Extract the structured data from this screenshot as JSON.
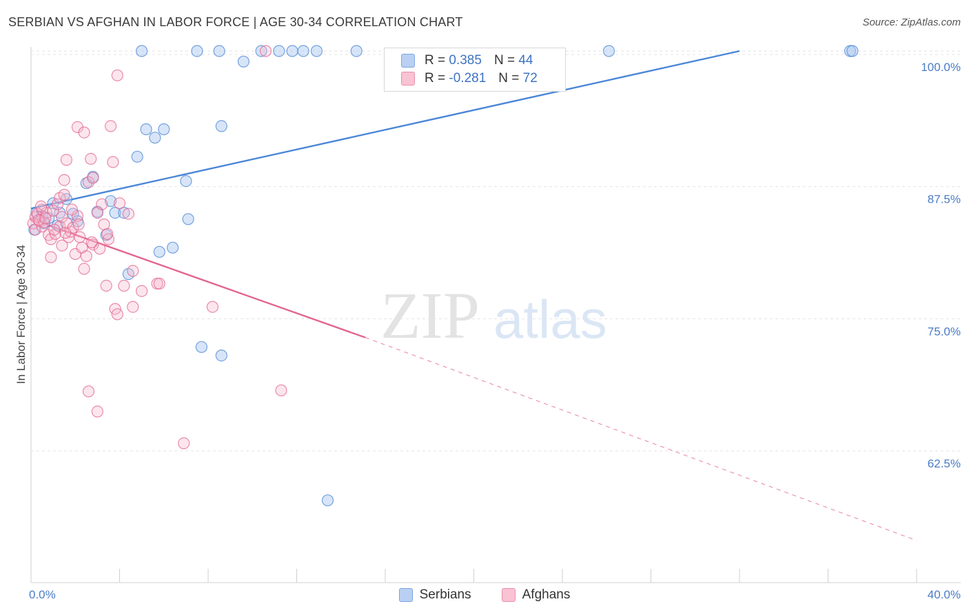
{
  "title": "SERBIAN VS AFGHAN IN LABOR FORCE | AGE 30-34 CORRELATION CHART",
  "source": "Source: ZipAtlas.com",
  "watermark": {
    "zip": "ZIP",
    "atlas": "atlas"
  },
  "legend": {
    "r_label": "R =",
    "n_label": "N =",
    "rows": [
      {
        "name": "Serbians",
        "r": "0.385",
        "n": "44",
        "fill": "#b9d0f3",
        "stroke": "#7aa4e0"
      },
      {
        "name": "Afghans",
        "r": "-0.281",
        "n": "72",
        "fill": "#f9c3d3",
        "stroke": "#ea8fab"
      }
    ]
  },
  "chart_data": {
    "type": "scatter",
    "title": "SERBIAN VS AFGHAN IN LABOR FORCE | AGE 30-34 CORRELATION CHART",
    "xlabel": "",
    "ylabel": "In Labor Force | Age 30-34",
    "xlim": [
      0,
      40
    ],
    "ylim": [
      52.5,
      101.5
    ],
    "x_tick_labels": [
      "0.0%",
      "40.0%"
    ],
    "y_ticks": [
      62.5,
      75.0,
      87.5,
      100.0
    ],
    "y_tick_labels": [
      "62.5%",
      "75.0%",
      "87.5%",
      "100.0%"
    ],
    "grid": true,
    "series": [
      {
        "name": "Serbians",
        "color": "#4a86d8",
        "fill": "#a9c6ef",
        "trend": {
          "x": [
            0,
            32
          ],
          "y": [
            86.6,
            101.5
          ],
          "dashed_extension": false
        },
        "points": [
          [
            0.15,
            84.6
          ],
          [
            0.25,
            86.2
          ],
          [
            0.5,
            85.9
          ],
          [
            0.6,
            85.2
          ],
          [
            0.8,
            85.7
          ],
          [
            1.0,
            87.1
          ],
          [
            1.2,
            85.0
          ],
          [
            1.3,
            86.2
          ],
          [
            1.6,
            87.5
          ],
          [
            1.9,
            86.1
          ],
          [
            2.1,
            85.4
          ],
          [
            2.5,
            89.0
          ],
          [
            2.8,
            89.6
          ],
          [
            3.0,
            86.3
          ],
          [
            3.4,
            84.1
          ],
          [
            3.6,
            87.3
          ],
          [
            3.8,
            86.2
          ],
          [
            4.2,
            86.2
          ],
          [
            4.4,
            80.4
          ],
          [
            4.8,
            91.5
          ],
          [
            5.0,
            101.5
          ],
          [
            5.2,
            94.1
          ],
          [
            5.6,
            93.3
          ],
          [
            6.0,
            94.1
          ],
          [
            5.8,
            82.5
          ],
          [
            6.4,
            82.9
          ],
          [
            7.0,
            89.2
          ],
          [
            7.1,
            85.6
          ],
          [
            7.5,
            101.5
          ],
          [
            7.7,
            73.5
          ],
          [
            8.5,
            101.5
          ],
          [
            8.6,
            72.7
          ],
          [
            8.6,
            94.4
          ],
          [
            9.6,
            100.5
          ],
          [
            10.4,
            101.5
          ],
          [
            11.2,
            101.5
          ],
          [
            11.8,
            101.5
          ],
          [
            12.3,
            101.5
          ],
          [
            12.9,
            101.5
          ],
          [
            13.4,
            59.0
          ],
          [
            14.7,
            101.5
          ],
          [
            26.1,
            101.5
          ],
          [
            37.0,
            101.5
          ],
          [
            37.1,
            101.5
          ]
        ]
      },
      {
        "name": "Afghans",
        "color": "#e2668f",
        "fill": "#f6b6ca",
        "trend": {
          "x": [
            0,
            15.1
          ],
          "y": [
            85.6,
            74.4
          ],
          "dashed_to": {
            "x": 40.0,
            "y": 55.2
          }
        },
        "points": [
          [
            0.1,
            85.2
          ],
          [
            0.2,
            84.6
          ],
          [
            0.2,
            85.8
          ],
          [
            0.3,
            86.1
          ],
          [
            0.4,
            85.4
          ],
          [
            0.5,
            86.5
          ],
          [
            0.5,
            84.9
          ],
          [
            0.6,
            85.3
          ],
          [
            0.7,
            86.2
          ],
          [
            0.8,
            84.1
          ],
          [
            0.9,
            82.0
          ],
          [
            0.9,
            83.7
          ],
          [
            1.0,
            86.4
          ],
          [
            1.1,
            84.2
          ],
          [
            1.2,
            87.0
          ],
          [
            1.3,
            87.6
          ],
          [
            1.3,
            84.9
          ],
          [
            1.4,
            85.8
          ],
          [
            1.4,
            83.1
          ],
          [
            1.5,
            89.3
          ],
          [
            1.5,
            87.9
          ],
          [
            1.6,
            91.2
          ],
          [
            1.6,
            85.2
          ],
          [
            1.7,
            83.9
          ],
          [
            1.8,
            84.4
          ],
          [
            1.9,
            84.8
          ],
          [
            2.0,
            82.3
          ],
          [
            2.1,
            94.3
          ],
          [
            2.1,
            85.9
          ],
          [
            2.2,
            83.9
          ],
          [
            2.3,
            82.9
          ],
          [
            2.4,
            93.8
          ],
          [
            2.4,
            80.9
          ],
          [
            2.5,
            82.1
          ],
          [
            2.6,
            89.1
          ],
          [
            2.6,
            69.3
          ],
          [
            2.7,
            91.3
          ],
          [
            2.8,
            83.2
          ],
          [
            2.8,
            89.5
          ],
          [
            3.0,
            67.4
          ],
          [
            3.0,
            86.2
          ],
          [
            3.1,
            82.8
          ],
          [
            3.2,
            87.0
          ],
          [
            3.3,
            85.1
          ],
          [
            3.4,
            79.3
          ],
          [
            3.5,
            83.7
          ],
          [
            3.6,
            94.4
          ],
          [
            3.7,
            91.0
          ],
          [
            3.8,
            77.1
          ],
          [
            3.9,
            76.6
          ],
          [
            3.9,
            99.2
          ],
          [
            4.0,
            87.1
          ],
          [
            4.2,
            79.3
          ],
          [
            4.4,
            86.1
          ],
          [
            4.6,
            80.7
          ],
          [
            4.6,
            77.3
          ],
          [
            5.0,
            78.8
          ],
          [
            5.7,
            79.5
          ],
          [
            5.8,
            79.5
          ],
          [
            6.9,
            64.4
          ],
          [
            8.2,
            77.3
          ],
          [
            10.6,
            101.5
          ],
          [
            11.3,
            69.4
          ],
          [
            0.35,
            85.5
          ],
          [
            0.65,
            85.7
          ],
          [
            1.05,
            84.6
          ],
          [
            1.55,
            84.3
          ],
          [
            1.85,
            86.5
          ],
          [
            2.15,
            85.1
          ],
          [
            2.75,
            83.4
          ],
          [
            3.45,
            84.2
          ],
          [
            0.45,
            86.8
          ]
        ]
      }
    ]
  }
}
